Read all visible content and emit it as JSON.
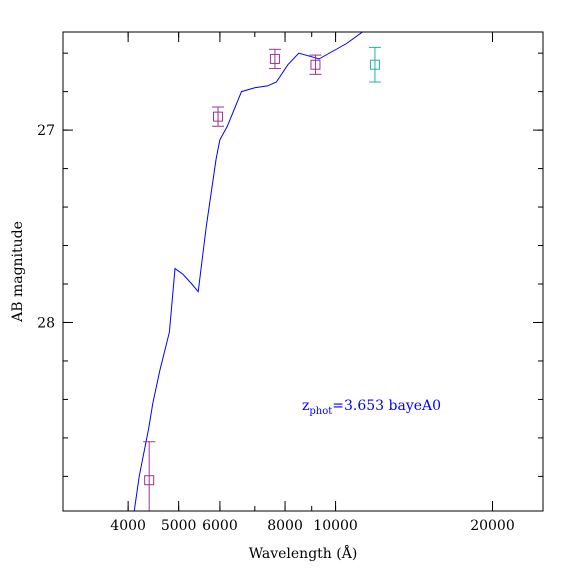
{
  "chart_data": {
    "type": "scatter",
    "title": "",
    "xlabel": "Wavelength (Å)",
    "ylabel": "AB magnitude",
    "x_scale": "log",
    "xlim": [
      3000,
      25000
    ],
    "ylim": [
      28.98,
      26.49
    ],
    "y_inverted": true,
    "x_ticks": [
      {
        "value": 4000,
        "label": "4000"
      },
      {
        "value": 5000,
        "label": "5000"
      },
      {
        "value": 6000,
        "label": "6000"
      },
      {
        "value": 8000,
        "label": "8000"
      },
      {
        "value": 10000,
        "label": "10000"
      },
      {
        "value": 20000,
        "label": "20000"
      }
    ],
    "y_ticks": [
      {
        "value": 27,
        "label": "27"
      },
      {
        "value": 28,
        "label": "28"
      }
    ],
    "grid": false,
    "series": [
      {
        "kind": "line",
        "color": "#0000ff",
        "x": [
          4100,
          4200,
          4380,
          4460,
          4600,
          4800,
          4920,
          5100,
          5300,
          5450,
          5650,
          5900,
          6000,
          6200,
          6600,
          7000,
          7400,
          7700,
          8100,
          8500,
          9300,
          10500,
          11800
        ],
        "y": [
          29.0,
          28.8,
          28.55,
          28.42,
          28.25,
          28.05,
          27.72,
          27.75,
          27.8,
          27.84,
          27.5,
          27.15,
          27.05,
          26.98,
          26.8,
          26.78,
          26.77,
          26.75,
          26.66,
          26.6,
          26.63,
          26.55,
          26.45
        ]
      },
      {
        "kind": "points",
        "color": "#9a329a",
        "points": [
          {
            "x": 4390,
            "y": 28.82,
            "err": 0.2
          },
          {
            "x": 5950,
            "y": 26.93,
            "err": 0.05
          },
          {
            "x": 7650,
            "y": 26.63,
            "err": 0.05
          },
          {
            "x": 9150,
            "y": 26.66,
            "err": 0.05
          }
        ]
      },
      {
        "kind": "points",
        "color": "#20b2aa",
        "points": [
          {
            "x": 11900,
            "y": 26.66,
            "err": 0.09
          }
        ]
      }
    ],
    "annotation": {
      "prefix": "z",
      "subscript": "phot",
      "text": "=3.653 bayeA0",
      "color": "#0000ff"
    }
  }
}
